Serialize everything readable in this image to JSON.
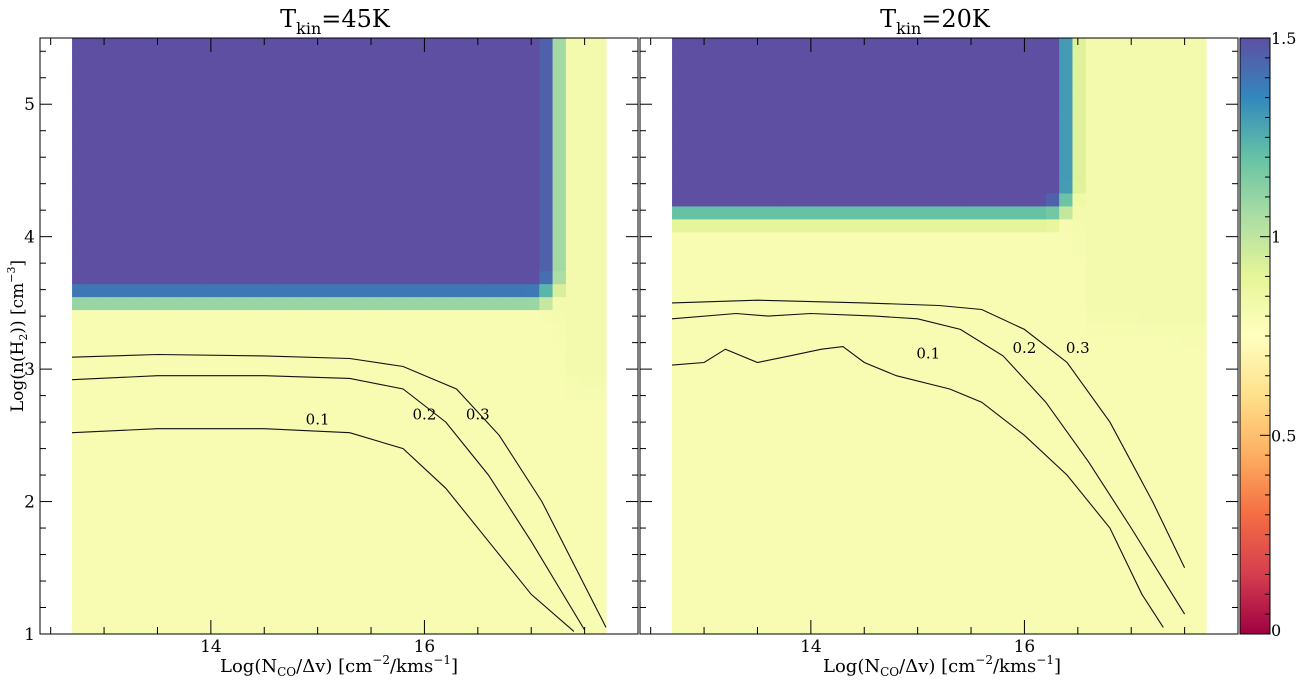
{
  "chart_data": [
    {
      "type": "heatmap",
      "title": "T_kin=45K",
      "title_main": "T",
      "title_sub": "kin",
      "title_rest": "=45K",
      "xlabel": "Log(N_CO/Δv) [cm^-2/kms^-1]",
      "ylabel": "Log(n(H_2)) [cm^-3]",
      "xlim": [
        12.4,
        18.0
      ],
      "ylim": [
        1.0,
        5.5
      ],
      "data_x_range": [
        12.7,
        17.7
      ],
      "x_ticks": [
        "14",
        "16"
      ],
      "y_ticks": [
        "1",
        "2",
        "3",
        "4",
        "5"
      ],
      "saturated_region": {
        "x_max": 17.0,
        "y_min": 3.75,
        "value": 1.5
      },
      "contours": [
        {
          "level": "0.1",
          "x": [
            12.7,
            13.5,
            14.5,
            15.3,
            15.8,
            16.2,
            16.6,
            17.0,
            17.4
          ],
          "y": [
            2.52,
            2.55,
            2.55,
            2.52,
            2.4,
            2.1,
            1.7,
            1.3,
            1.02
          ]
        },
        {
          "level": "0.2",
          "x": [
            12.7,
            13.5,
            14.5,
            15.3,
            15.8,
            16.2,
            16.6,
            17.0,
            17.5
          ],
          "y": [
            2.92,
            2.95,
            2.95,
            2.93,
            2.85,
            2.6,
            2.2,
            1.7,
            1.03
          ]
        },
        {
          "level": "0.3",
          "x": [
            12.7,
            13.5,
            14.5,
            15.3,
            15.8,
            16.3,
            16.7,
            17.1,
            17.7
          ],
          "y": [
            3.09,
            3.11,
            3.1,
            3.08,
            3.02,
            2.85,
            2.5,
            2.0,
            1.05
          ]
        }
      ],
      "contour_labels": [
        {
          "text": "0.1",
          "x": 15.0,
          "y": 2.58
        },
        {
          "text": "0.2",
          "x": 16.0,
          "y": 2.62
        },
        {
          "text": "0.3",
          "x": 16.5,
          "y": 2.62
        }
      ]
    },
    {
      "type": "heatmap",
      "title": "T_kin=20K",
      "title_main": "T",
      "title_sub": "kin",
      "title_rest": "=20K",
      "xlabel": "Log(N_CO/Δv) [cm^-2/kms^-1]",
      "xlim": [
        12.4,
        18.0
      ],
      "ylim": [
        1.0,
        5.5
      ],
      "data_x_range": [
        12.7,
        17.7
      ],
      "x_ticks": [
        "14",
        "16"
      ],
      "saturated_region": {
        "x_max": 16.2,
        "y_min": 4.4,
        "value": 1.5
      },
      "contours": [
        {
          "level": "0.1",
          "x": [
            12.7,
            13.0,
            13.2,
            13.5,
            13.8,
            14.1,
            14.3,
            14.5,
            14.8,
            15.3,
            15.6,
            16.0,
            16.4,
            16.8,
            17.1,
            17.3
          ],
          "y": [
            3.03,
            3.05,
            3.15,
            3.05,
            3.1,
            3.15,
            3.17,
            3.05,
            2.95,
            2.85,
            2.75,
            2.5,
            2.2,
            1.8,
            1.3,
            1.05
          ]
        },
        {
          "level": "0.2",
          "x": [
            12.7,
            13.3,
            13.6,
            14.0,
            14.6,
            15.0,
            15.4,
            15.8,
            16.2,
            16.6,
            17.0,
            17.5
          ],
          "y": [
            3.38,
            3.42,
            3.4,
            3.42,
            3.4,
            3.38,
            3.3,
            3.1,
            2.75,
            2.3,
            1.8,
            1.15
          ]
        },
        {
          "level": "0.3",
          "x": [
            12.7,
            13.5,
            14.5,
            15.2,
            15.6,
            16.0,
            16.4,
            16.8,
            17.2,
            17.5
          ],
          "y": [
            3.5,
            3.52,
            3.5,
            3.48,
            3.45,
            3.3,
            3.05,
            2.6,
            2.0,
            1.5
          ]
        }
      ],
      "contour_labels": [
        {
          "text": "0.1",
          "x": 15.1,
          "y": 3.08
        },
        {
          "text": "0.2",
          "x": 16.0,
          "y": 3.12
        },
        {
          "text": "0.3",
          "x": 16.5,
          "y": 3.12
        }
      ]
    }
  ],
  "colorbar": {
    "range": [
      0,
      1.5
    ],
    "tick_labels": [
      "0",
      "0.5",
      "1",
      "1.5"
    ],
    "tick_values": [
      0,
      0.5,
      1.0,
      1.5
    ],
    "stops": [
      "#9e0142",
      "#d53e4f",
      "#f46d43",
      "#fdae61",
      "#fee08b",
      "#ffffbf",
      "#e6f598",
      "#abdda4",
      "#66c2a5",
      "#3288bd",
      "#5e4fa2"
    ]
  }
}
